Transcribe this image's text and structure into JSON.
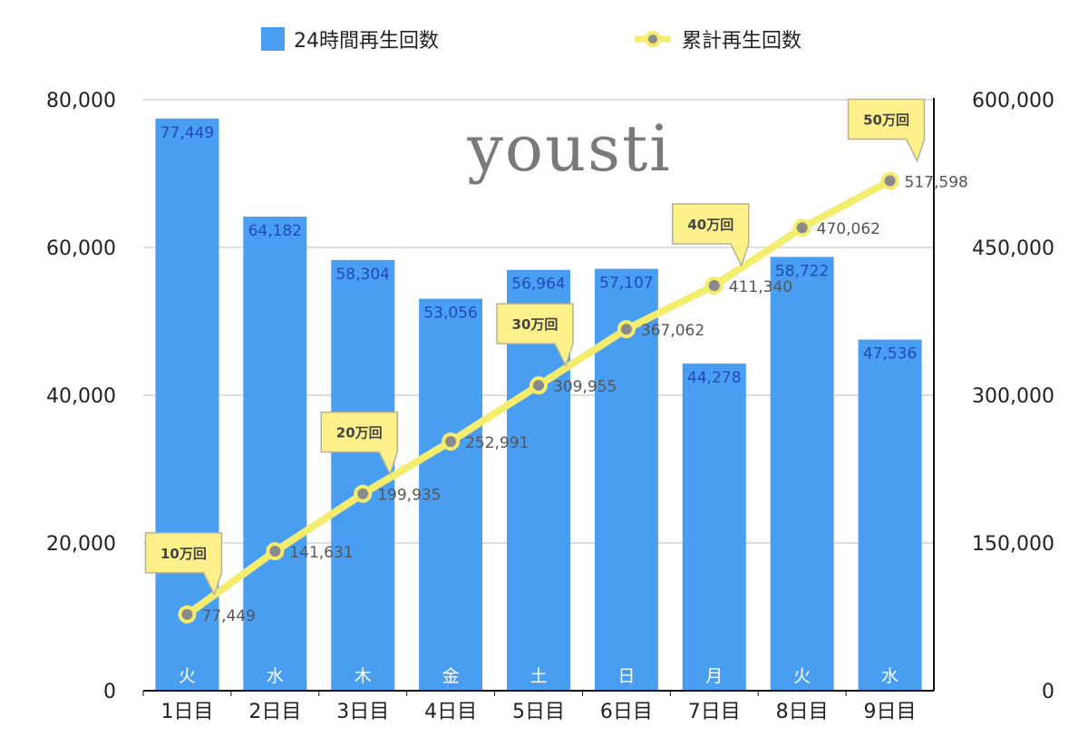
{
  "chart_data": {
    "type": "bar+line",
    "categories": [
      "1日目",
      "2日目",
      "3日目",
      "4日目",
      "5日目",
      "6日目",
      "7日目",
      "8日目",
      "9日目"
    ],
    "weekdays": [
      "火",
      "水",
      "木",
      "金",
      "土",
      "日",
      "月",
      "火",
      "水"
    ],
    "series": [
      {
        "name": "24時間再生回数",
        "type": "bar",
        "axis": "left",
        "color": "#4a9ef2",
        "values": [
          77449,
          64182,
          58304,
          53056,
          56964,
          57107,
          44278,
          58722,
          47536
        ],
        "labels": [
          "77,449",
          "64,182",
          "58,304",
          "53,056",
          "56,964",
          "57,107",
          "44,278",
          "58,722",
          "47,536"
        ]
      },
      {
        "name": "累計再生回数",
        "type": "line",
        "axis": "right",
        "color": "#f4ec6c",
        "values": [
          77449,
          141631,
          199935,
          252991,
          309955,
          367062,
          411340,
          470062,
          517598
        ],
        "labels": [
          "77,449",
          "141,631",
          "199,935",
          "252,991",
          "309,955",
          "367,062",
          "411,340",
          "470,062",
          "517,598"
        ]
      }
    ],
    "left_axis": {
      "ylim": [
        0,
        80000
      ],
      "ticks": [
        0,
        20000,
        40000,
        60000,
        80000
      ],
      "tick_labels": [
        "0",
        "20,000",
        "40,000",
        "60,000",
        "80,000"
      ]
    },
    "right_axis": {
      "ylim": [
        0,
        600000
      ],
      "ticks": [
        0,
        150000,
        300000,
        450000,
        600000
      ],
      "tick_labels": [
        "0",
        "150,000",
        "300,000",
        "450,000",
        "600,000"
      ]
    },
    "callouts": [
      {
        "text": "10万回",
        "index": 0
      },
      {
        "text": "20万回",
        "index": 2
      },
      {
        "text": "30万回",
        "index": 4
      },
      {
        "text": "40万回",
        "index": 6
      },
      {
        "text": "50万回",
        "index": 8
      }
    ],
    "grid": true,
    "legend_position": "top"
  },
  "watermark": "yousti"
}
